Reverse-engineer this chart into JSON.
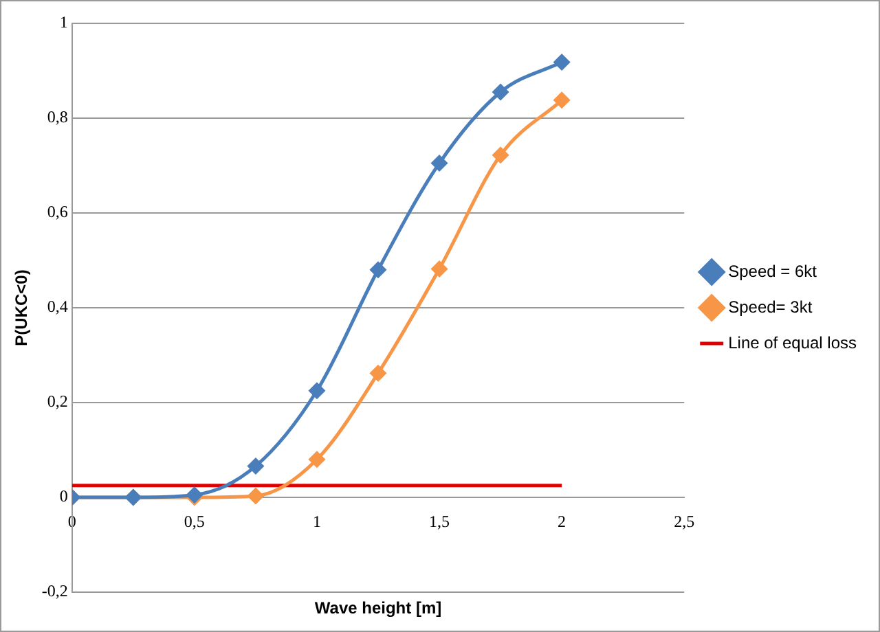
{
  "chart_data": {
    "type": "line",
    "xlabel": "Wave height [m]",
    "ylabel": "P(UKC<0)",
    "x": [
      0,
      0.25,
      0.5,
      0.75,
      1,
      1.25,
      1.5,
      1.75,
      2
    ],
    "series": [
      {
        "name": "Speed = 6kt",
        "color": "#4a7ebb",
        "values": [
          0,
          0,
          0.005,
          0.066,
          0.225,
          0.48,
          0.705,
          0.855,
          0.918
        ]
      },
      {
        "name": "Speed= 3kt",
        "color": "#f79646",
        "values": [
          0,
          0,
          0,
          0.003,
          0.08,
          0.262,
          0.482,
          0.722,
          0.838
        ]
      },
      {
        "name": "Line of equal loss",
        "color": "#e00000",
        "x": [
          0,
          2
        ],
        "values": [
          0.025,
          0.025
        ],
        "marker": "none"
      }
    ],
    "xlim": [
      0,
      2.5
    ],
    "xticks": [
      0,
      {
        "value": 0.5,
        "label": "0,5"
      },
      1,
      {
        "value": 1.5,
        "label": "1,5"
      },
      2,
      {
        "value": 2.5,
        "label": "2,5"
      }
    ],
    "ylim": [
      -0.2,
      1
    ],
    "yticks": [
      {
        "value": -0.2,
        "label": "-0,2"
      },
      0,
      {
        "value": 0.2,
        "label": "0,2"
      },
      {
        "value": 0.4,
        "label": "0,4"
      },
      {
        "value": 0.6,
        "label": "0,6"
      },
      {
        "value": 0.8,
        "label": "0,8"
      },
      1
    ],
    "grid": "y",
    "legend": "right",
    "marker": "diamond"
  }
}
